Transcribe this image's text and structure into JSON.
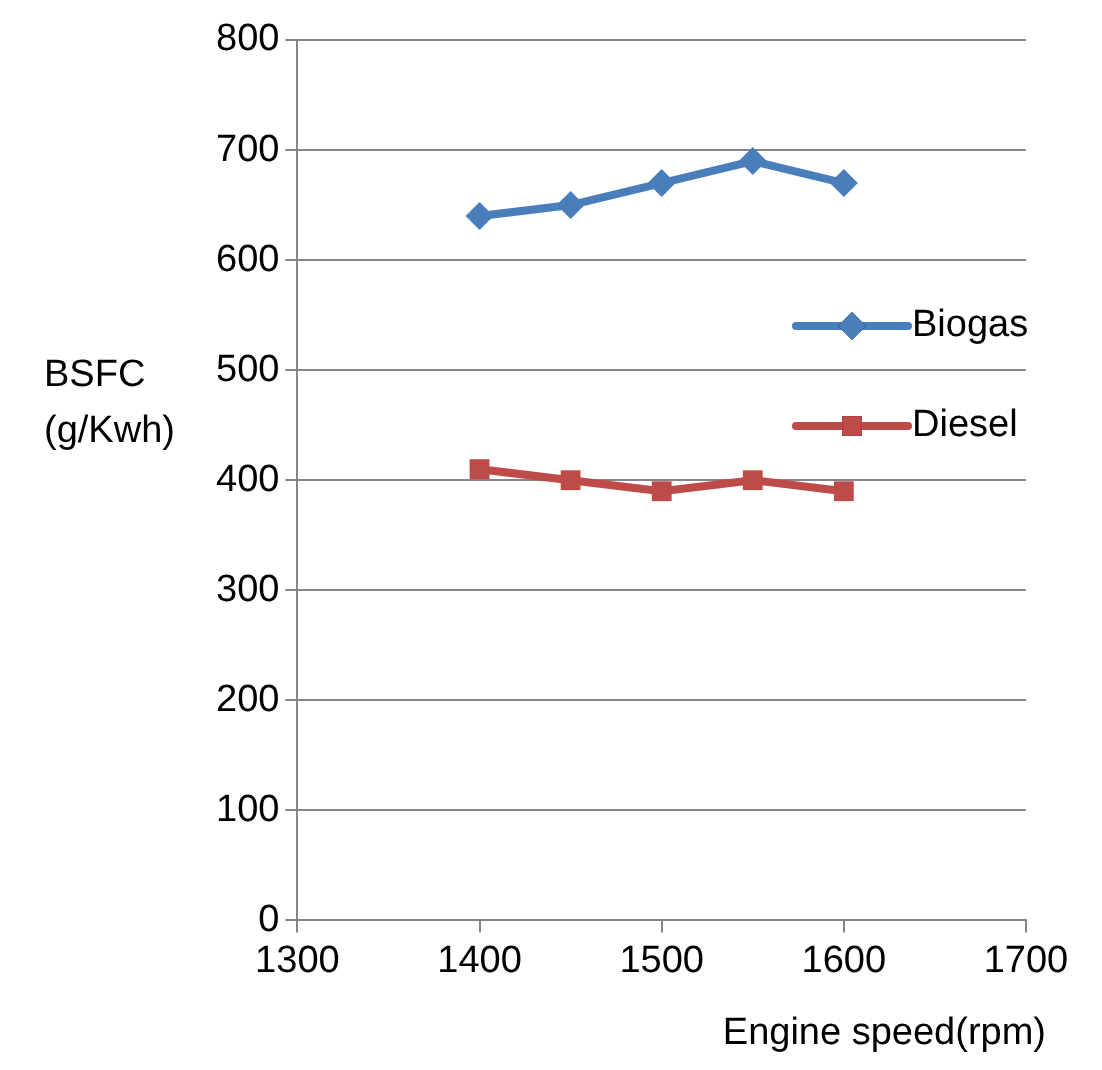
{
  "chart_data": {
    "type": "line",
    "xlabel": "Engine speed(rpm)",
    "ylabel": "BSFC (g/Kwh)",
    "x": [
      1400,
      1450,
      1500,
      1550,
      1600
    ],
    "series": [
      {
        "name": "Biogas",
        "color": "#4a7ebb",
        "marker": "diamond",
        "values": [
          640,
          650,
          670,
          690,
          670
        ]
      },
      {
        "name": "Diesel",
        "color": "#be4b48",
        "marker": "square",
        "values": [
          410,
          400,
          390,
          400,
          390
        ]
      }
    ],
    "xlim": [
      1300,
      1700
    ],
    "xticks": [
      1300,
      1400,
      1500,
      1600,
      1700
    ],
    "ylim": [
      0,
      800
    ],
    "yticks": [
      0,
      100,
      200,
      300,
      400,
      500,
      600,
      700,
      800
    ],
    "grid": "y",
    "legend": "right"
  }
}
